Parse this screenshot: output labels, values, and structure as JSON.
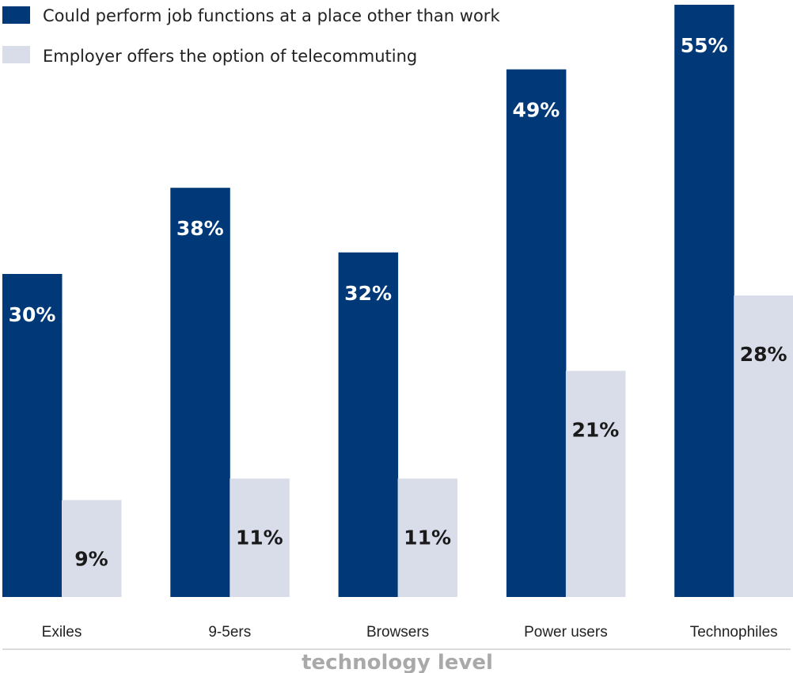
{
  "colors": {
    "series_primary": "#003878",
    "series_secondary": "#d9dce9",
    "label_on_dark": "#ffffff",
    "label_on_light": "#1a1a1a",
    "axis_line": "#d0d0d0",
    "xlabel_color": "#a9a9a9"
  },
  "chart_data": {
    "type": "bar",
    "categories": [
      "Exiles",
      "9-5ers",
      "Browsers",
      "Power users",
      "Technophiles"
    ],
    "series": [
      {
        "name": "Could perform job functions at a place other than work",
        "values": [
          30,
          38,
          32,
          49,
          55
        ]
      },
      {
        "name": "Employer offers the option of telecommuting",
        "values": [
          9,
          11,
          11,
          21,
          28
        ]
      }
    ],
    "value_labels": [
      [
        "30%",
        "38%",
        "32%",
        "49%",
        "55%"
      ],
      [
        "9%",
        "11%",
        "11%",
        "21%",
        "28%"
      ]
    ],
    "xlabel": "technology level",
    "ylabel": "",
    "title": "",
    "legend_position": "top-left",
    "grid": false
  }
}
